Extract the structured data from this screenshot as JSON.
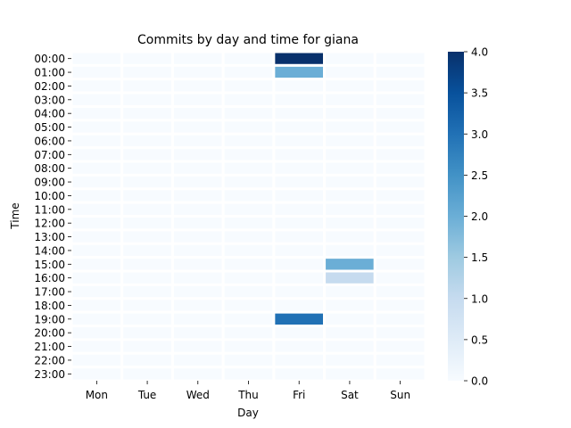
{
  "chart_data": {
    "type": "heatmap",
    "title": "Commits by day and time for giana",
    "xlabel": "Day",
    "ylabel": "Time",
    "x_categories": [
      "Mon",
      "Tue",
      "Wed",
      "Thu",
      "Fri",
      "Sat",
      "Sun"
    ],
    "y_categories": [
      "00:00",
      "01:00",
      "02:00",
      "03:00",
      "04:00",
      "05:00",
      "06:00",
      "07:00",
      "08:00",
      "09:00",
      "10:00",
      "11:00",
      "12:00",
      "13:00",
      "14:00",
      "15:00",
      "16:00",
      "17:00",
      "18:00",
      "19:00",
      "20:00",
      "21:00",
      "22:00",
      "23:00"
    ],
    "values": [
      [
        0,
        0,
        0,
        0,
        4,
        0,
        0
      ],
      [
        0,
        0,
        0,
        0,
        2,
        0,
        0
      ],
      [
        0,
        0,
        0,
        0,
        0,
        0,
        0
      ],
      [
        0,
        0,
        0,
        0,
        0,
        0,
        0
      ],
      [
        0,
        0,
        0,
        0,
        0,
        0,
        0
      ],
      [
        0,
        0,
        0,
        0,
        0,
        0,
        0
      ],
      [
        0,
        0,
        0,
        0,
        0,
        0,
        0
      ],
      [
        0,
        0,
        0,
        0,
        0,
        0,
        0
      ],
      [
        0,
        0,
        0,
        0,
        0,
        0,
        0
      ],
      [
        0,
        0,
        0,
        0,
        0,
        0,
        0
      ],
      [
        0,
        0,
        0,
        0,
        0,
        0,
        0
      ],
      [
        0,
        0,
        0,
        0,
        0,
        0,
        0
      ],
      [
        0,
        0,
        0,
        0,
        0,
        0,
        0
      ],
      [
        0,
        0,
        0,
        0,
        0,
        0,
        0
      ],
      [
        0,
        0,
        0,
        0,
        0,
        0,
        0
      ],
      [
        0,
        0,
        0,
        0,
        0,
        2,
        0
      ],
      [
        0,
        0,
        0,
        0,
        0,
        1,
        0
      ],
      [
        0,
        0,
        0,
        0,
        0,
        0,
        0
      ],
      [
        0,
        0,
        0,
        0,
        0,
        0,
        0
      ],
      [
        0,
        0,
        0,
        0,
        3,
        0,
        0
      ],
      [
        0,
        0,
        0,
        0,
        0,
        0,
        0
      ],
      [
        0,
        0,
        0,
        0,
        0,
        0,
        0
      ],
      [
        0,
        0,
        0,
        0,
        0,
        0,
        0
      ],
      [
        0,
        0,
        0,
        0,
        0,
        0,
        0
      ]
    ],
    "colorbar": {
      "min": 0,
      "max": 4,
      "ticks": [
        "0.0",
        "0.5",
        "1.0",
        "1.5",
        "2.0",
        "2.5",
        "3.0",
        "3.5",
        "4.0"
      ],
      "colormap": "Blues",
      "color_low": "#f7fbff",
      "color_high": "#08306b"
    }
  }
}
